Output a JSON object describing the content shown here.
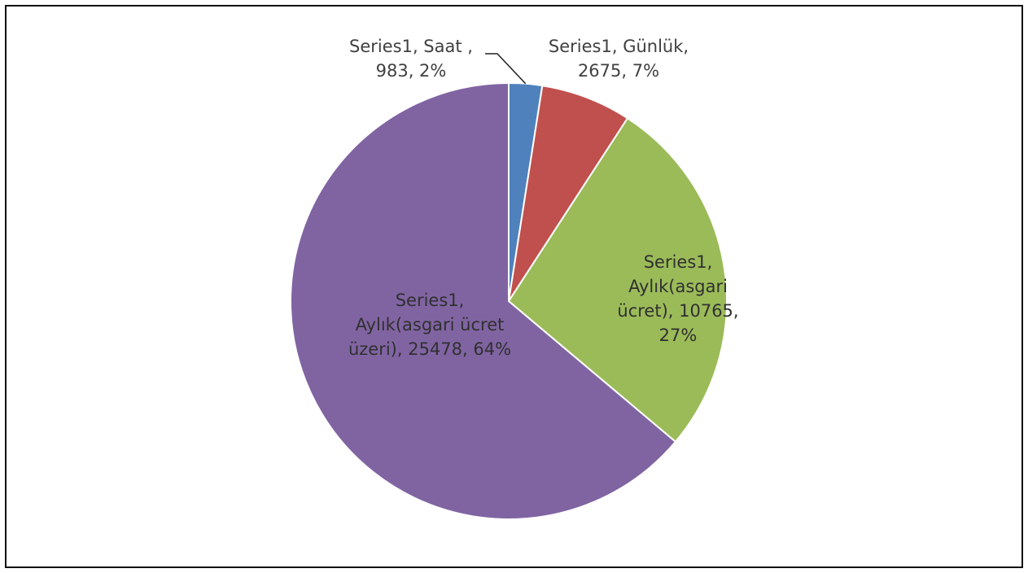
{
  "chart_data": {
    "type": "pie",
    "title": "",
    "series": [
      {
        "name": "Series1",
        "categories": [
          "Saat",
          "Günlük",
          "Aylık(asgari ücret)",
          "Aylık(asgari ücret üzeri)"
        ],
        "values": [
          983,
          2675,
          10765,
          25478
        ],
        "percentages": [
          2,
          7,
          27,
          64
        ]
      }
    ],
    "data_labels": [
      {
        "lines": [
          "Series1, Saat ,",
          "983, 2%"
        ]
      },
      {
        "lines": [
          "Series1, Günlük,",
          "2675, 7%"
        ]
      },
      {
        "lines": [
          "Series1,",
          "Aylık(asgari",
          "ücret), 10765,",
          "27%"
        ]
      },
      {
        "lines": [
          "Series1,",
          "Aylık(asgari ücret",
          "üzeri), 25478, 64%"
        ]
      }
    ],
    "colors": [
      "#4f81bd",
      "#c0504d",
      "#9bbb59",
      "#8064a2"
    ],
    "legend": "none",
    "grid": false
  }
}
